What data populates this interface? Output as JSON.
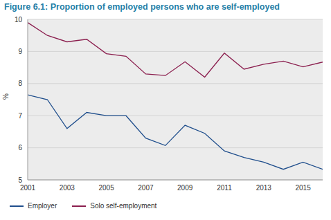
{
  "chart_data": {
    "type": "line",
    "title": "Figure 6.1: Proportion of employed persons who are self-employed",
    "y_label": "%",
    "x": [
      2001,
      2002,
      2003,
      2004,
      2005,
      2006,
      2007,
      2008,
      2009,
      2010,
      2011,
      2012,
      2013,
      2014,
      2015,
      2016
    ],
    "series": [
      {
        "name": "Employer",
        "color": "#1f4e8c",
        "values": [
          7.65,
          7.5,
          6.6,
          7.1,
          7.0,
          7.0,
          6.3,
          6.07,
          6.7,
          6.45,
          5.9,
          5.7,
          5.55,
          5.33,
          5.55,
          5.33
        ]
      },
      {
        "name": "Solo self-employment",
        "color": "#8b1e4e",
        "values": [
          9.9,
          9.5,
          9.3,
          9.38,
          8.93,
          8.85,
          8.3,
          8.25,
          8.68,
          8.2,
          8.95,
          8.45,
          8.6,
          8.7,
          8.52,
          8.67
        ]
      }
    ],
    "xlim": [
      2001,
      2016
    ],
    "xticks": [
      2001,
      2003,
      2005,
      2007,
      2009,
      2011,
      2013,
      2015
    ],
    "ylim": [
      5,
      10
    ],
    "yticks": [
      5,
      6,
      7,
      8,
      9,
      10
    ],
    "grid": true,
    "legend": "bottom-left"
  }
}
